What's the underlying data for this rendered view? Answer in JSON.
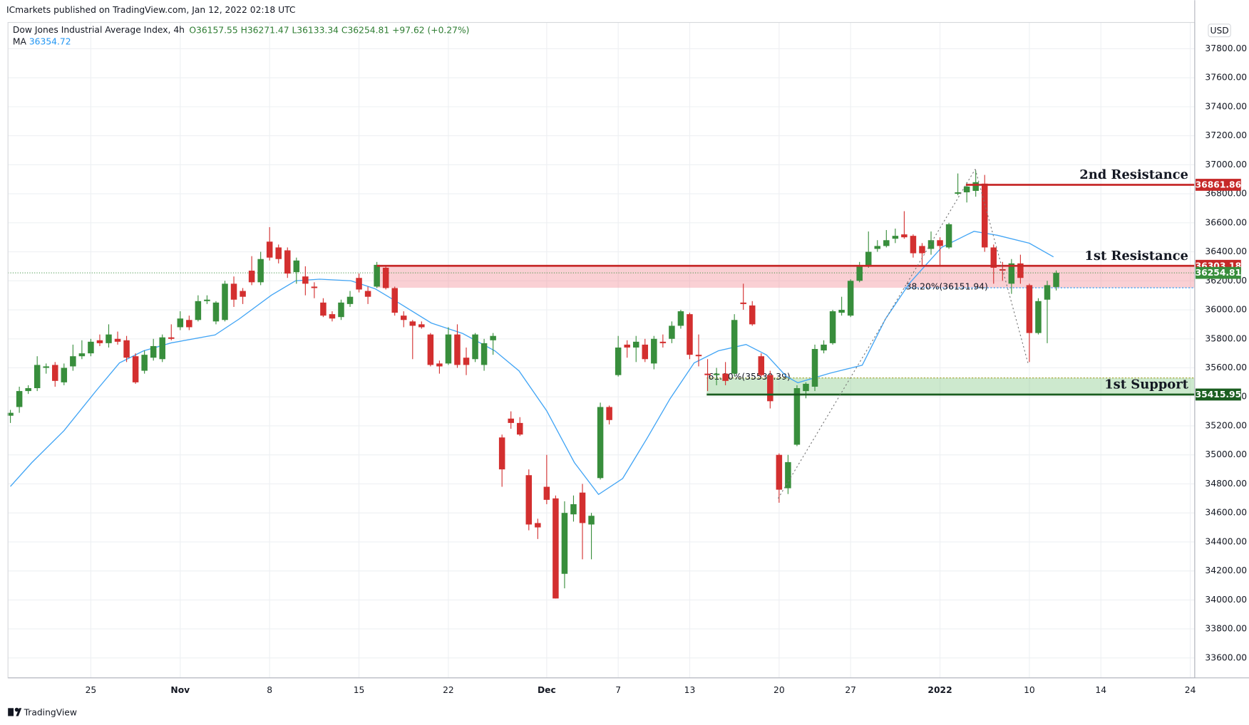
{
  "chart_data": {
    "type": "candlestick",
    "title": "Dow Jones Industrial Average Index, 4h",
    "subtitle": "ICmarkets published on TradingView.com, Jan 12, 2022 02:18 UTC",
    "footer": "TradingView",
    "currency": "USD",
    "legend": {
      "open": "O36157.55",
      "high": "H36271.47",
      "low": "L36133.34",
      "close": "C36254.81",
      "change": "+97.62 (+0.27%)"
    },
    "up_color": "#388e3c",
    "down_color": "#d32f2f",
    "grid": true,
    "x": [
      0,
      1,
      2,
      3,
      4,
      5,
      6,
      7,
      8,
      9,
      10,
      11,
      12,
      13,
      14,
      15,
      16,
      17,
      18,
      19,
      20,
      21,
      22,
      23,
      24,
      25,
      26,
      27,
      28,
      29,
      30,
      31,
      32,
      33,
      34,
      35,
      36,
      37,
      38,
      39,
      40,
      41,
      42,
      43,
      44,
      45,
      46,
      47,
      48,
      49,
      50,
      51,
      52,
      53,
      54,
      55,
      56,
      57,
      58,
      59,
      60,
      61,
      62,
      63,
      64,
      65,
      66,
      67,
      68,
      69,
      70,
      71,
      72,
      73,
      74,
      75,
      76,
      77,
      78,
      79,
      80,
      81,
      82,
      83,
      84,
      85,
      86,
      87,
      88,
      89,
      90,
      91,
      92,
      93,
      94,
      95,
      96,
      97,
      98,
      99,
      100,
      101,
      102,
      103,
      104,
      105,
      106,
      107,
      108,
      109,
      110,
      111,
      112,
      113,
      114,
      115,
      116,
      117
    ],
    "open": [
      35270,
      35330,
      35440,
      35460,
      35600,
      35620,
      35500,
      35610,
      35680,
      35700,
      35790,
      35770,
      35800,
      35790,
      35680,
      35580,
      35670,
      35660,
      35810,
      35880,
      35930,
      35930,
      36060,
      35920,
      35930,
      36180,
      36130,
      36270,
      36190,
      36470,
      36430,
      36410,
      36260,
      36230,
      36160,
      36050,
      35970,
      35950,
      36040,
      36220,
      36130,
      36160,
      36290,
      36150,
      35960,
      35920,
      35900,
      35830,
      35630,
      35630,
      35830,
      35670,
      35660,
      35620,
      35790,
      35120,
      35250,
      35220,
      34860,
      34530,
      34780,
      34700,
      34180,
      34590,
      34740,
      34520,
      34840,
      35330,
      35550,
      35760,
      35740,
      35760,
      35630,
      35780,
      35800,
      35890,
      35970,
      35690,
      35560,
      35550,
      35560,
      35560,
      36050,
      36030,
      35680,
      35550,
      35000,
      34770,
      35070,
      35440,
      35470,
      35720,
      35770,
      35980,
      35960,
      36200,
      36300,
      36420,
      36440,
      36490,
      36520,
      36510,
      36440,
      36420,
      36480,
      36430,
      36800,
      36810,
      36820,
      36870,
      36430,
      36280,
      36180,
      36320,
      36170,
      35840,
      36070,
      36157.55
    ],
    "high": [
      35310,
      35470,
      35480,
      35680,
      35630,
      35640,
      35630,
      35760,
      35790,
      35800,
      35830,
      35900,
      35850,
      35820,
      35700,
      35720,
      35800,
      35830,
      35900,
      35990,
      35960,
      36100,
      36100,
      36060,
      36200,
      36230,
      36150,
      36370,
      36400,
      36570,
      36450,
      36430,
      36360,
      36300,
      36190,
      36080,
      35990,
      36070,
      36130,
      36250,
      36160,
      36330,
      36300,
      36160,
      35990,
      35930,
      35920,
      35840,
      35650,
      35880,
      35900,
      35740,
      35840,
      35800,
      35840,
      35140,
      35300,
      35260,
      34900,
      34560,
      35000,
      34720,
      34680,
      34720,
      34800,
      34600,
      35360,
      35340,
      35820,
      35790,
      35820,
      35800,
      35820,
      35830,
      35920,
      36000,
      35980,
      35830,
      35660,
      35600,
      35640,
      35970,
      36180,
      36060,
      35700,
      35580,
      35010,
      35000,
      35480,
      35500,
      35760,
      35790,
      36000,
      36090,
      36210,
      36330,
      36540,
      36480,
      36550,
      36560,
      36680,
      36520,
      36460,
      36540,
      36500,
      36600,
      36940,
      36880,
      36960,
      36930,
      36450,
      36330,
      36350,
      36380,
      36180,
      36080,
      36200,
      36271.47
    ],
    "low": [
      35220,
      35290,
      35420,
      35440,
      35560,
      35470,
      35480,
      35580,
      35660,
      35680,
      35750,
      35740,
      35760,
      35640,
      35490,
      35560,
      35650,
      35640,
      35790,
      35860,
      35860,
      35920,
      36040,
      35900,
      35920,
      36020,
      36040,
      36170,
      36170,
      36340,
      36320,
      36220,
      36180,
      36100,
      36080,
      35950,
      35920,
      35930,
      36020,
      36120,
      36040,
      36150,
      36140,
      35960,
      35880,
      35660,
      35870,
      35610,
      35560,
      35620,
      35600,
      35550,
      35640,
      35580,
      35690,
      34780,
      35180,
      35130,
      34480,
      34420,
      34660,
      34010,
      34080,
      34540,
      34280,
      34280,
      34830,
      35210,
      35540,
      35670,
      35640,
      35640,
      35590,
      35740,
      35770,
      35870,
      35660,
      35610,
      35440,
      35480,
      35480,
      35540,
      36000,
      35890,
      35540,
      35320,
      34670,
      34730,
      35060,
      35390,
      35440,
      35700,
      35760,
      35960,
      35950,
      36190,
      36290,
      36400,
      36430,
      36460,
      36490,
      36360,
      36300,
      36380,
      36300,
      36420,
      36790,
      36740,
      36780,
      36400,
      36180,
      36200,
      36110,
      36180,
      35640,
      35830,
      35770,
      36133.34
    ],
    "close": [
      35290,
      35440,
      35460,
      35620,
      35610,
      35510,
      35600,
      35680,
      35700,
      35780,
      35770,
      35830,
      35780,
      35670,
      35500,
      35690,
      35750,
      35810,
      35800,
      35940,
      35880,
      36060,
      36070,
      36050,
      36180,
      36070,
      36090,
      36190,
      36350,
      36360,
      36350,
      36250,
      36340,
      36180,
      36150,
      35960,
      35940,
      36050,
      36090,
      36140,
      36090,
      36310,
      36150,
      35980,
      35930,
      35890,
      35880,
      35620,
      35610,
      35830,
      35620,
      35620,
      35830,
      35770,
      35820,
      34900,
      35220,
      35140,
      34520,
      34500,
      34690,
      34010,
      34600,
      34660,
      34530,
      34580,
      35330,
      35240,
      35740,
      35740,
      35780,
      35660,
      35800,
      35770,
      35890,
      35990,
      35690,
      35680,
      35550,
      35560,
      35510,
      35930,
      36040,
      35900,
      35550,
      35370,
      34760,
      34950,
      35460,
      35490,
      35730,
      35760,
      35990,
      36000,
      36200,
      36300,
      36400,
      36440,
      36480,
      36510,
      36500,
      36390,
      36390,
      36480,
      36440,
      36590,
      36810,
      36850,
      36880,
      36430,
      36290,
      36270,
      36320,
      36220,
      35840,
      36060,
      36170,
      36254.81
    ],
    "ma": {
      "name": "MA",
      "value_label": "36354.72",
      "color": "#42a5f5",
      "x": [
        0,
        2.4,
        6,
        9.6,
        12.2,
        14.9,
        18,
        22.9,
        25.6,
        29.2,
        31.9,
        34.6,
        38.1,
        40.8,
        43.5,
        47.1,
        50.6,
        54.2,
        56.9,
        60,
        63.1,
        65.8,
        68.5,
        71.2,
        73.8,
        76.5,
        79.2,
        82.3,
        84.6,
        86.8,
        88.1,
        91.7,
        95.3,
        97.9,
        100.6,
        104.2,
        106.9,
        107.8,
        110.4,
        114,
        116.7
      ],
      "values": [
        34782,
        34947,
        35167,
        35442,
        35634,
        35717,
        35772,
        35827,
        35937,
        36101,
        36200,
        36211,
        36200,
        36145,
        36046,
        35909,
        35837,
        35717,
        35579,
        35304,
        34947,
        34727,
        34837,
        35112,
        35387,
        35634,
        35717,
        35761,
        35689,
        35541,
        35497,
        35563,
        35618,
        35937,
        36184,
        36431,
        36514,
        36541,
        36514,
        36459,
        36365
      ]
    },
    "levels": [
      {
        "name": "2nd Resistance",
        "value": 36861.86,
        "from": 106.9,
        "color": "#c62828"
      },
      {
        "name": "1st Resistance",
        "value": 36303.18,
        "from": 41,
        "color": "#c62828"
      },
      {
        "name": "1st Support",
        "value": 35415.95,
        "from": 77.9,
        "color": "#1b5e20"
      }
    ],
    "fib": [
      {
        "label": "38.20%(36151.94)",
        "value": 36151.94,
        "from": 100,
        "color": "#2196f3"
      },
      {
        "label": "61.80%(35530.39)",
        "value": 35530.39,
        "from": 77.9,
        "color": "#9e9d24"
      }
    ],
    "xlim": [
      -0.27,
      132.5
    ],
    "xticks": [
      {
        "value": 9,
        "label": "25"
      },
      {
        "value": 19,
        "label": "Nov"
      },
      {
        "value": 29,
        "label": "8"
      },
      {
        "value": 39,
        "label": "15"
      },
      {
        "value": 49,
        "label": "22"
      },
      {
        "value": 60,
        "label": "Dec"
      },
      {
        "value": 68,
        "label": "7"
      },
      {
        "value": 76,
        "label": "13"
      },
      {
        "value": 86,
        "label": "20"
      },
      {
        "value": 94,
        "label": "27"
      },
      {
        "value": 104,
        "label": "2022"
      },
      {
        "value": 114,
        "label": "10"
      },
      {
        "value": 122,
        "label": "14"
      },
      {
        "value": 132,
        "label": "24"
      }
    ],
    "ylim": [
      33463,
      37981
    ],
    "yticks": [
      {
        "value": 33600,
        "label": "33600.00"
      },
      {
        "value": 33800,
        "label": "33800.00"
      },
      {
        "value": 34000,
        "label": "34000.00"
      },
      {
        "value": 34200,
        "label": "34200.00"
      },
      {
        "value": 34400,
        "label": "34400.00"
      },
      {
        "value": 34600,
        "label": "34600.00"
      },
      {
        "value": 34800,
        "label": "34800.00"
      },
      {
        "value": 35000,
        "label": "35000.00"
      },
      {
        "value": 35200,
        "label": "35200.00"
      },
      {
        "value": 35400,
        "label": "35400.00"
      },
      {
        "value": 35600,
        "label": "35600.00"
      },
      {
        "value": 35800,
        "label": "35800.00"
      },
      {
        "value": 36000,
        "label": "36000.00"
      },
      {
        "value": 36200,
        "label": "36200.00"
      },
      {
        "value": 36400,
        "label": "36400.00"
      },
      {
        "value": 36600,
        "label": "36600.00"
      },
      {
        "value": 36800,
        "label": "36800.00"
      },
      {
        "value": 37000,
        "label": "37000.00"
      },
      {
        "value": 37200,
        "label": "37200.00"
      },
      {
        "value": 37400,
        "label": "37400.00"
      },
      {
        "value": 37600,
        "label": "37600.00"
      },
      {
        "value": 37800,
        "label": "37800.00"
      }
    ]
  }
}
